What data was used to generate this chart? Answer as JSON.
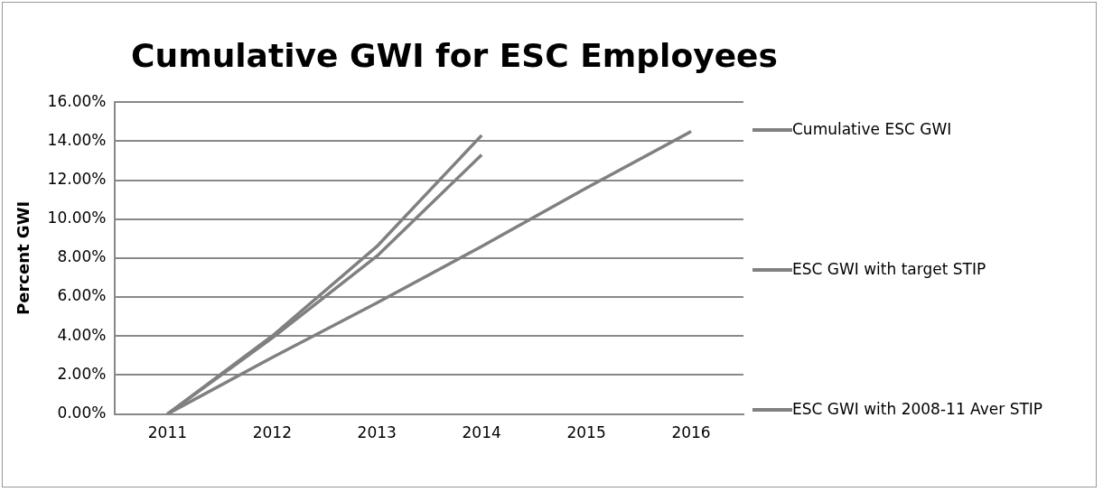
{
  "chart_data": {
    "type": "line",
    "title": "Cumulative GWI for ESC Employees",
    "ylabel": "Percent GWI",
    "categories": [
      "2011",
      "2012",
      "2013",
      "2014",
      "2015",
      "2016"
    ],
    "series": [
      {
        "name": "Cumulative ESC GWI",
        "color": "#808080",
        "values": [
          0,
          2.9,
          5.7,
          8.6,
          11.6,
          14.5
        ]
      },
      {
        "name": "ESC GWI with target STIP",
        "color": "#808080",
        "values": [
          0,
          4.0,
          8.6,
          14.3,
          null,
          null
        ]
      },
      {
        "name": "ESC GWI with 2008-11 Aver STIP",
        "color": "#808080",
        "values": [
          0,
          3.9,
          8.1,
          13.3,
          null,
          null
        ]
      }
    ],
    "ylim": [
      0,
      16
    ],
    "yticks": [
      {
        "value": 0,
        "label": "0.00%"
      },
      {
        "value": 2,
        "label": "2.00%"
      },
      {
        "value": 4,
        "label": "4.00%"
      },
      {
        "value": 6,
        "label": "6.00%"
      },
      {
        "value": 8,
        "label": "8.00%"
      },
      {
        "value": 10,
        "label": "10.00%"
      },
      {
        "value": 12,
        "label": "12.00%"
      },
      {
        "value": 14,
        "label": "14.00%"
      },
      {
        "value": 16,
        "label": "16.00%"
      }
    ],
    "grid": "y",
    "legend": "right",
    "marker": "none",
    "line_style": "solid"
  }
}
